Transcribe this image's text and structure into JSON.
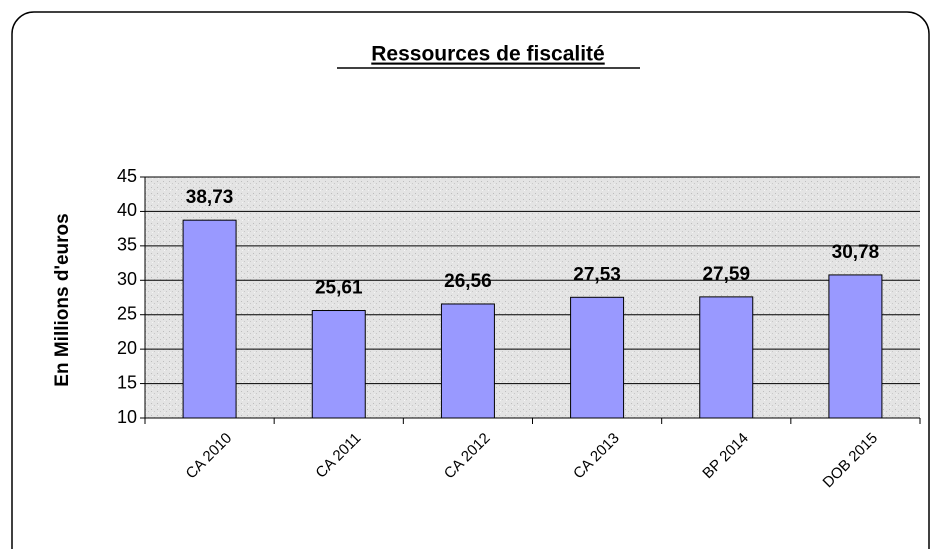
{
  "chart_data": {
    "type": "bar",
    "title": "Ressources de fiscalité",
    "ylabel": "En Millions d'euros",
    "categories": [
      "CA 2010",
      "CA 2011",
      "CA 2012",
      "CA 2013",
      "BP 2014",
      "DOB 2015"
    ],
    "values": [
      38.73,
      25.61,
      26.56,
      27.53,
      27.59,
      30.78
    ],
    "value_labels": [
      "38,73",
      "25,61",
      "26,56",
      "27,53",
      "27,59",
      "30,78"
    ],
    "color": "#9999ff",
    "ylim": [
      10,
      45
    ],
    "yticks": [
      10,
      15,
      20,
      25,
      30,
      35,
      40,
      45
    ],
    "grid": true
  }
}
